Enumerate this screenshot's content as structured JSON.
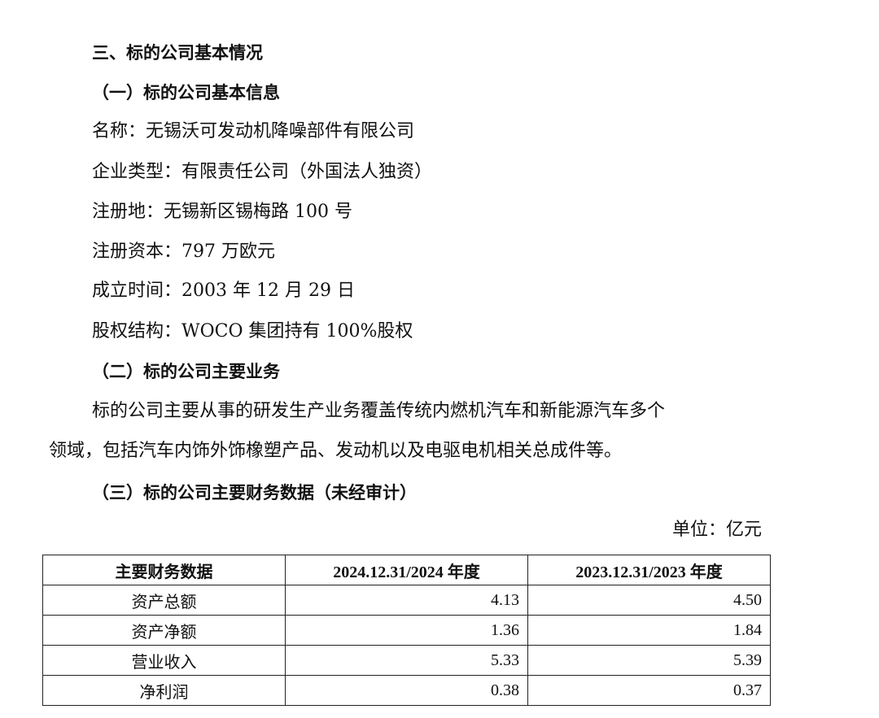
{
  "section_title": "三、标的公司基本情况",
  "sub1": "（一）标的公司基本信息",
  "info": [
    "名称：无锡沃可发动机降噪部件有限公司",
    "企业类型：有限责任公司（外国法人独资）",
    "注册地：无锡新区锡梅路 100 号",
    "注册资本：797 万欧元",
    "成立时间：2003 年 12 月 29 日",
    "股权结构：WOCO 集团持有 100%股权"
  ],
  "sub2": "（二）标的公司主要业务",
  "business": [
    "标的公司主要从事的研发生产业务覆盖传统内燃机汽车和新能源汽车多个",
    "领域，包括汽车内饰外饰橡塑产品、发动机以及电驱电机相关总成件等。"
  ],
  "sub3": "（三）标的公司主要财务数据（未经审计）",
  "unit": "单位：亿元",
  "table": {
    "headers": [
      "主要财务数据",
      "2024.12.31/2024 年度",
      "2023.12.31/2023 年度"
    ],
    "rows": [
      [
        "资产总额",
        "4.13",
        "4.50"
      ],
      [
        "资产净额",
        "1.36",
        "1.84"
      ],
      [
        "营业收入",
        "5.33",
        "5.39"
      ],
      [
        "净利润",
        "0.38",
        "0.37"
      ]
    ]
  }
}
